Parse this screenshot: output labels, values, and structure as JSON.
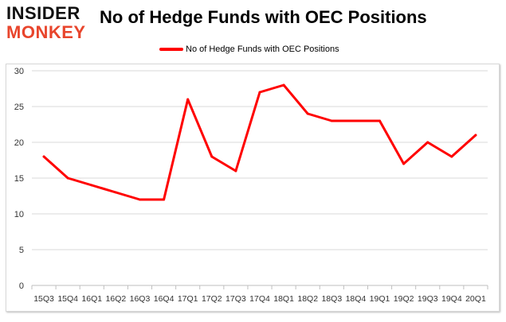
{
  "brand": {
    "line1": "INSIDER",
    "line2": "MONKEY"
  },
  "colors": {
    "line": "#ff0000",
    "brand_dark": "#111111",
    "brand_accent": "#e8452c",
    "grid": "#d9d9d9",
    "axis_text": "#333333"
  },
  "chart_data": {
    "type": "line",
    "title": "No of Hedge Funds with OEC Positions",
    "legend_position": "top-center",
    "grid": true,
    "xlabel": "",
    "ylabel": "",
    "ylim": [
      0,
      30
    ],
    "yticks": [
      0,
      5,
      10,
      15,
      20,
      25,
      30
    ],
    "categories": [
      "15Q3",
      "15Q4",
      "16Q1",
      "16Q2",
      "16Q3",
      "16Q4",
      "17Q1",
      "17Q2",
      "17Q3",
      "17Q4",
      "18Q1",
      "18Q2",
      "18Q3",
      "18Q4",
      "19Q1",
      "19Q2",
      "19Q3",
      "19Q4",
      "20Q1"
    ],
    "series": [
      {
        "name": "No of Hedge Funds with OEC Positions",
        "values": [
          18,
          15,
          14,
          13,
          12,
          12,
          26,
          18,
          16,
          27,
          28,
          24,
          23,
          23,
          23,
          17,
          20,
          18,
          21
        ]
      }
    ]
  }
}
